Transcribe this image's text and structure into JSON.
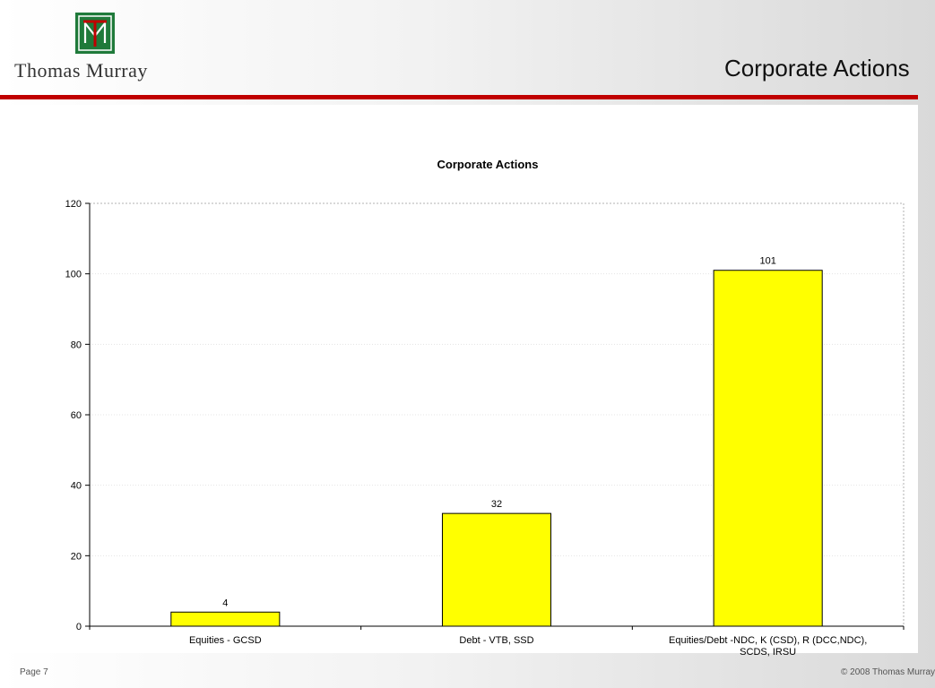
{
  "header": {
    "logo_text": "Thomas Murray",
    "slide_title": "Corporate Actions",
    "accent_color": "#c00000",
    "logo_color": "#1f7a3a"
  },
  "chart_data": {
    "type": "bar",
    "title": "Corporate Actions",
    "categories": [
      [
        "Equities - GCSD"
      ],
      [
        "Debt - VTB, SSD"
      ],
      [
        "Equities/Debt -NDC,  K (CSD),  R (DCC,NDC),",
        "SCDS, IRSU"
      ]
    ],
    "values": [
      4,
      32,
      101
    ],
    "data_labels": [
      "4",
      "32",
      "101"
    ],
    "ylim": [
      0,
      120
    ],
    "yticks": [
      0,
      20,
      40,
      60,
      80,
      100,
      120
    ],
    "xlabel": "",
    "ylabel": "",
    "bar_color": "#ffff00",
    "grid": true,
    "legend": "none"
  },
  "footer": {
    "page_label": "Page 7",
    "copyright": "©  2008 Thomas Murray"
  }
}
